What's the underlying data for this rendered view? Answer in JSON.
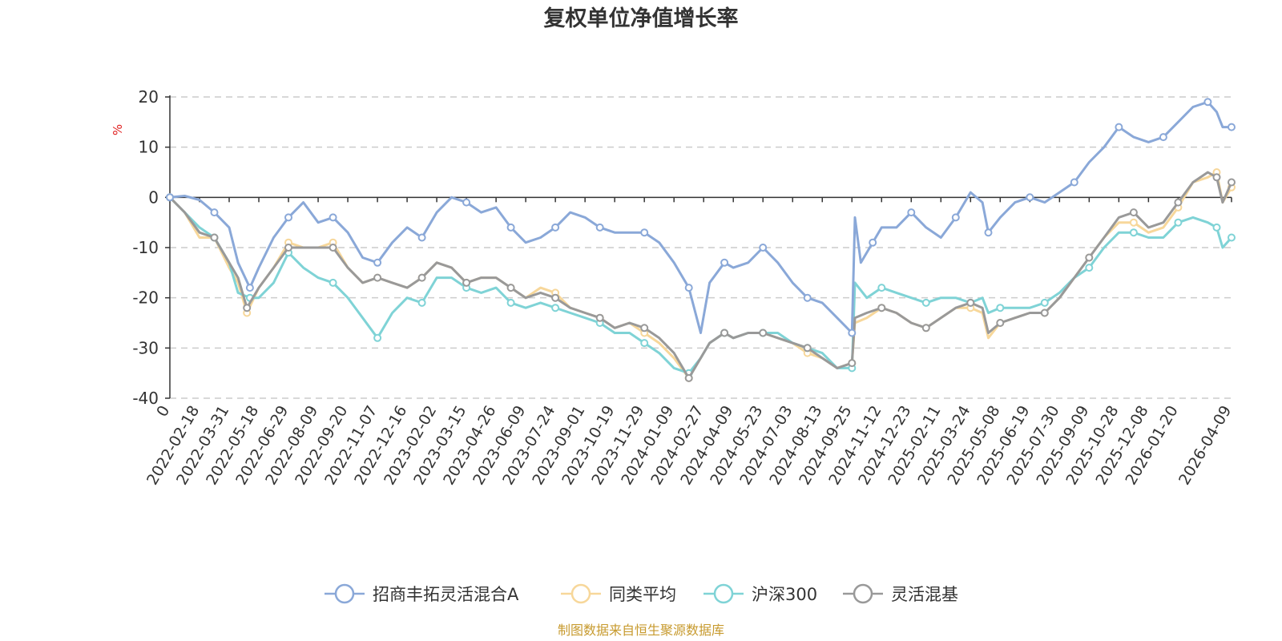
{
  "chart_data": {
    "type": "line",
    "title": "复权单位净值增长率",
    "ylabel": "%",
    "ylim": [
      -40,
      20
    ],
    "yticks": [
      20,
      10,
      0,
      -10,
      -20,
      -30,
      -40
    ],
    "x_tick_labels": [
      "0",
      "2022-02-18",
      "2022-03-31",
      "2022-05-18",
      "2022-06-29",
      "2022-08-09",
      "2022-09-20",
      "2022-11-07",
      "2022-12-16",
      "2023-02-02",
      "2023-03-15",
      "2023-04-26",
      "2023-06-09",
      "2023-07-24",
      "2023-09-01",
      "2023-10-19",
      "2023-11-29",
      "2024-01-09",
      "2024-02-27",
      "2024-04-09",
      "2024-05-23",
      "2024-07-03",
      "2024-08-13",
      "2024-09-25",
      "2024-11-12",
      "2024-12-23",
      "2025-02-11",
      "2025-03-24",
      "2025-05-08",
      "2025-06-19",
      "2025-07-30",
      "2025-09-09",
      "2025-10-28",
      "2025-12-08",
      "2026-01-20",
      "2026-04-09"
    ],
    "x_positions": [
      0,
      1,
      2,
      3,
      4,
      5,
      6,
      7,
      8,
      9,
      10,
      11,
      12,
      13,
      14,
      15,
      16,
      17,
      18,
      19,
      20,
      21,
      22,
      23,
      24,
      25,
      26,
      27,
      28,
      29,
      30,
      31,
      32,
      33,
      34,
      35.8
    ],
    "x_range": [
      0,
      35.8
    ],
    "grid": true,
    "legend_position": "bottom",
    "source": "制图数据来自恒生聚源数据库",
    "series": [
      {
        "name": "招商丰拓灵活混合A",
        "color": "#8aa8d8",
        "points": [
          [
            0,
            0
          ],
          [
            0.5,
            0.3
          ],
          [
            1,
            -0.5
          ],
          [
            1.5,
            -3
          ],
          [
            2,
            -6
          ],
          [
            2.3,
            -13
          ],
          [
            2.7,
            -18
          ],
          [
            3,
            -14
          ],
          [
            3.5,
            -8
          ],
          [
            4,
            -4
          ],
          [
            4.5,
            -1
          ],
          [
            5,
            -5
          ],
          [
            5.5,
            -4
          ],
          [
            6,
            -7
          ],
          [
            6.5,
            -12
          ],
          [
            7,
            -13
          ],
          [
            7.5,
            -9
          ],
          [
            8,
            -6
          ],
          [
            8.5,
            -8
          ],
          [
            9,
            -3
          ],
          [
            9.5,
            0
          ],
          [
            10,
            -1
          ],
          [
            10.5,
            -3
          ],
          [
            11,
            -2
          ],
          [
            11.5,
            -6
          ],
          [
            12,
            -9
          ],
          [
            12.5,
            -8
          ],
          [
            13,
            -6
          ],
          [
            13.5,
            -3
          ],
          [
            14,
            -4
          ],
          [
            14.5,
            -6
          ],
          [
            15,
            -7
          ],
          [
            15.5,
            -7
          ],
          [
            16,
            -7
          ],
          [
            16.5,
            -9
          ],
          [
            17,
            -13
          ],
          [
            17.5,
            -18
          ],
          [
            17.9,
            -27
          ],
          [
            18.2,
            -17
          ],
          [
            18.7,
            -13
          ],
          [
            19,
            -14
          ],
          [
            19.5,
            -13
          ],
          [
            20,
            -10
          ],
          [
            20.5,
            -13
          ],
          [
            21,
            -17
          ],
          [
            21.5,
            -20
          ],
          [
            22,
            -21
          ],
          [
            22.5,
            -24
          ],
          [
            23,
            -27
          ],
          [
            23.1,
            -4
          ],
          [
            23.3,
            -13
          ],
          [
            23.7,
            -9
          ],
          [
            24,
            -6
          ],
          [
            24.5,
            -6
          ],
          [
            25,
            -3
          ],
          [
            25.5,
            -6
          ],
          [
            26,
            -8
          ],
          [
            26.5,
            -4
          ],
          [
            27,
            1
          ],
          [
            27.4,
            -1
          ],
          [
            27.6,
            -7
          ],
          [
            28,
            -4
          ],
          [
            28.5,
            -1
          ],
          [
            29,
            0
          ],
          [
            29.5,
            -1
          ],
          [
            30,
            1
          ],
          [
            30.5,
            3
          ],
          [
            31,
            7
          ],
          [
            31.5,
            10
          ],
          [
            32,
            14
          ],
          [
            32.5,
            12
          ],
          [
            33,
            11
          ],
          [
            33.5,
            12
          ],
          [
            34,
            15
          ],
          [
            34.5,
            18
          ],
          [
            35,
            19
          ],
          [
            35.3,
            17
          ],
          [
            35.5,
            14
          ],
          [
            35.8,
            14
          ]
        ]
      },
      {
        "name": "同类平均",
        "color": "#f7d79a",
        "points": [
          [
            0,
            0
          ],
          [
            0.5,
            -3
          ],
          [
            1,
            -8
          ],
          [
            1.5,
            -8
          ],
          [
            2,
            -14
          ],
          [
            2.3,
            -17
          ],
          [
            2.6,
            -23
          ],
          [
            3,
            -18
          ],
          [
            3.5,
            -14
          ],
          [
            4,
            -9
          ],
          [
            4.5,
            -10
          ],
          [
            5,
            -10
          ],
          [
            5.5,
            -9
          ],
          [
            6,
            -14
          ],
          [
            6.5,
            -17
          ],
          [
            7,
            -16
          ],
          [
            7.5,
            -17
          ],
          [
            8,
            -18
          ],
          [
            8.5,
            -16
          ],
          [
            9,
            -13
          ],
          [
            9.5,
            -14
          ],
          [
            10,
            -17
          ],
          [
            10.5,
            -16
          ],
          [
            11,
            -16
          ],
          [
            11.5,
            -18
          ],
          [
            12,
            -20
          ],
          [
            12.5,
            -18
          ],
          [
            13,
            -19
          ],
          [
            13.5,
            -22
          ],
          [
            14,
            -23
          ],
          [
            14.5,
            -24
          ],
          [
            15,
            -26
          ],
          [
            15.5,
            -25
          ],
          [
            16,
            -27
          ],
          [
            16.5,
            -29
          ],
          [
            17,
            -32
          ],
          [
            17.5,
            -36
          ],
          [
            17.9,
            -32
          ],
          [
            18.2,
            -29
          ],
          [
            18.7,
            -27
          ],
          [
            19,
            -28
          ],
          [
            19.5,
            -27
          ],
          [
            20,
            -27
          ],
          [
            20.5,
            -28
          ],
          [
            21,
            -29
          ],
          [
            21.5,
            -31
          ],
          [
            22,
            -32
          ],
          [
            22.5,
            -34
          ],
          [
            23,
            -33
          ],
          [
            23.1,
            -25
          ],
          [
            23.5,
            -24
          ],
          [
            24,
            -22
          ],
          [
            24.5,
            -23
          ],
          [
            25,
            -25
          ],
          [
            25.5,
            -26
          ],
          [
            26,
            -24
          ],
          [
            26.5,
            -22
          ],
          [
            27,
            -22
          ],
          [
            27.4,
            -23
          ],
          [
            27.6,
            -28
          ],
          [
            28,
            -25
          ],
          [
            28.5,
            -24
          ],
          [
            29,
            -23
          ],
          [
            29.5,
            -23
          ],
          [
            30,
            -20
          ],
          [
            30.5,
            -16
          ],
          [
            31,
            -12
          ],
          [
            31.5,
            -8
          ],
          [
            32,
            -5
          ],
          [
            32.5,
            -5
          ],
          [
            33,
            -7
          ],
          [
            33.5,
            -6
          ],
          [
            34,
            -2
          ],
          [
            34.5,
            3
          ],
          [
            35,
            4
          ],
          [
            35.3,
            5
          ],
          [
            35.5,
            -1
          ],
          [
            35.8,
            2
          ]
        ]
      },
      {
        "name": "沪深300",
        "color": "#7fd3d6",
        "points": [
          [
            0,
            0
          ],
          [
            0.5,
            -3
          ],
          [
            1,
            -6
          ],
          [
            1.5,
            -8
          ],
          [
            2,
            -13
          ],
          [
            2.3,
            -19
          ],
          [
            2.7,
            -20
          ],
          [
            3,
            -20
          ],
          [
            3.5,
            -17
          ],
          [
            4,
            -11
          ],
          [
            4.5,
            -14
          ],
          [
            5,
            -16
          ],
          [
            5.5,
            -17
          ],
          [
            6,
            -20
          ],
          [
            6.5,
            -24
          ],
          [
            7,
            -28
          ],
          [
            7.5,
            -23
          ],
          [
            8,
            -20
          ],
          [
            8.5,
            -21
          ],
          [
            9,
            -16
          ],
          [
            9.5,
            -16
          ],
          [
            10,
            -18
          ],
          [
            10.5,
            -19
          ],
          [
            11,
            -18
          ],
          [
            11.5,
            -21
          ],
          [
            12,
            -22
          ],
          [
            12.5,
            -21
          ],
          [
            13,
            -22
          ],
          [
            13.5,
            -23
          ],
          [
            14,
            -24
          ],
          [
            14.5,
            -25
          ],
          [
            15,
            -27
          ],
          [
            15.5,
            -27
          ],
          [
            16,
            -29
          ],
          [
            16.5,
            -31
          ],
          [
            17,
            -34
          ],
          [
            17.5,
            -35
          ],
          [
            17.9,
            -32
          ],
          [
            18.2,
            -29
          ],
          [
            18.7,
            -27
          ],
          [
            19,
            -28
          ],
          [
            19.5,
            -27
          ],
          [
            20,
            -27
          ],
          [
            20.5,
            -27
          ],
          [
            21,
            -29
          ],
          [
            21.5,
            -30
          ],
          [
            22,
            -31
          ],
          [
            22.5,
            -34
          ],
          [
            23,
            -34
          ],
          [
            23.1,
            -17
          ],
          [
            23.5,
            -20
          ],
          [
            24,
            -18
          ],
          [
            24.5,
            -19
          ],
          [
            25,
            -20
          ],
          [
            25.5,
            -21
          ],
          [
            26,
            -20
          ],
          [
            26.5,
            -20
          ],
          [
            27,
            -21
          ],
          [
            27.4,
            -20
          ],
          [
            27.6,
            -23
          ],
          [
            28,
            -22
          ],
          [
            28.5,
            -22
          ],
          [
            29,
            -22
          ],
          [
            29.5,
            -21
          ],
          [
            30,
            -19
          ],
          [
            30.5,
            -16
          ],
          [
            31,
            -14
          ],
          [
            31.5,
            -10
          ],
          [
            32,
            -7
          ],
          [
            32.5,
            -7
          ],
          [
            33,
            -8
          ],
          [
            33.5,
            -8
          ],
          [
            34,
            -5
          ],
          [
            34.5,
            -4
          ],
          [
            35,
            -5
          ],
          [
            35.3,
            -6
          ],
          [
            35.5,
            -10
          ],
          [
            35.8,
            -8
          ]
        ]
      },
      {
        "name": "灵活混基",
        "color": "#999999",
        "points": [
          [
            0,
            0
          ],
          [
            0.5,
            -3
          ],
          [
            1,
            -7
          ],
          [
            1.5,
            -8
          ],
          [
            2,
            -13
          ],
          [
            2.3,
            -16
          ],
          [
            2.6,
            -22
          ],
          [
            3,
            -18
          ],
          [
            3.5,
            -14
          ],
          [
            4,
            -10
          ],
          [
            4.5,
            -10
          ],
          [
            5,
            -10
          ],
          [
            5.5,
            -10
          ],
          [
            6,
            -14
          ],
          [
            6.5,
            -17
          ],
          [
            7,
            -16
          ],
          [
            7.5,
            -17
          ],
          [
            8,
            -18
          ],
          [
            8.5,
            -16
          ],
          [
            9,
            -13
          ],
          [
            9.5,
            -14
          ],
          [
            10,
            -17
          ],
          [
            10.5,
            -16
          ],
          [
            11,
            -16
          ],
          [
            11.5,
            -18
          ],
          [
            12,
            -20
          ],
          [
            12.5,
            -19
          ],
          [
            13,
            -20
          ],
          [
            13.5,
            -22
          ],
          [
            14,
            -23
          ],
          [
            14.5,
            -24
          ],
          [
            15,
            -26
          ],
          [
            15.5,
            -25
          ],
          [
            16,
            -26
          ],
          [
            16.5,
            -28
          ],
          [
            17,
            -31
          ],
          [
            17.5,
            -36
          ],
          [
            17.9,
            -32
          ],
          [
            18.2,
            -29
          ],
          [
            18.7,
            -27
          ],
          [
            19,
            -28
          ],
          [
            19.5,
            -27
          ],
          [
            20,
            -27
          ],
          [
            20.5,
            -28
          ],
          [
            21,
            -29
          ],
          [
            21.5,
            -30
          ],
          [
            22,
            -32
          ],
          [
            22.5,
            -34
          ],
          [
            23,
            -33
          ],
          [
            23.1,
            -24
          ],
          [
            23.5,
            -23
          ],
          [
            24,
            -22
          ],
          [
            24.5,
            -23
          ],
          [
            25,
            -25
          ],
          [
            25.5,
            -26
          ],
          [
            26,
            -24
          ],
          [
            26.5,
            -22
          ],
          [
            27,
            -21
          ],
          [
            27.4,
            -22
          ],
          [
            27.6,
            -27
          ],
          [
            28,
            -25
          ],
          [
            28.5,
            -24
          ],
          [
            29,
            -23
          ],
          [
            29.5,
            -23
          ],
          [
            30,
            -20
          ],
          [
            30.5,
            -16
          ],
          [
            31,
            -12
          ],
          [
            31.5,
            -8
          ],
          [
            32,
            -4
          ],
          [
            32.5,
            -3
          ],
          [
            33,
            -6
          ],
          [
            33.5,
            -5
          ],
          [
            34,
            -1
          ],
          [
            34.5,
            3
          ],
          [
            35,
            5
          ],
          [
            35.3,
            4
          ],
          [
            35.5,
            -1
          ],
          [
            35.8,
            3
          ]
        ]
      }
    ]
  }
}
